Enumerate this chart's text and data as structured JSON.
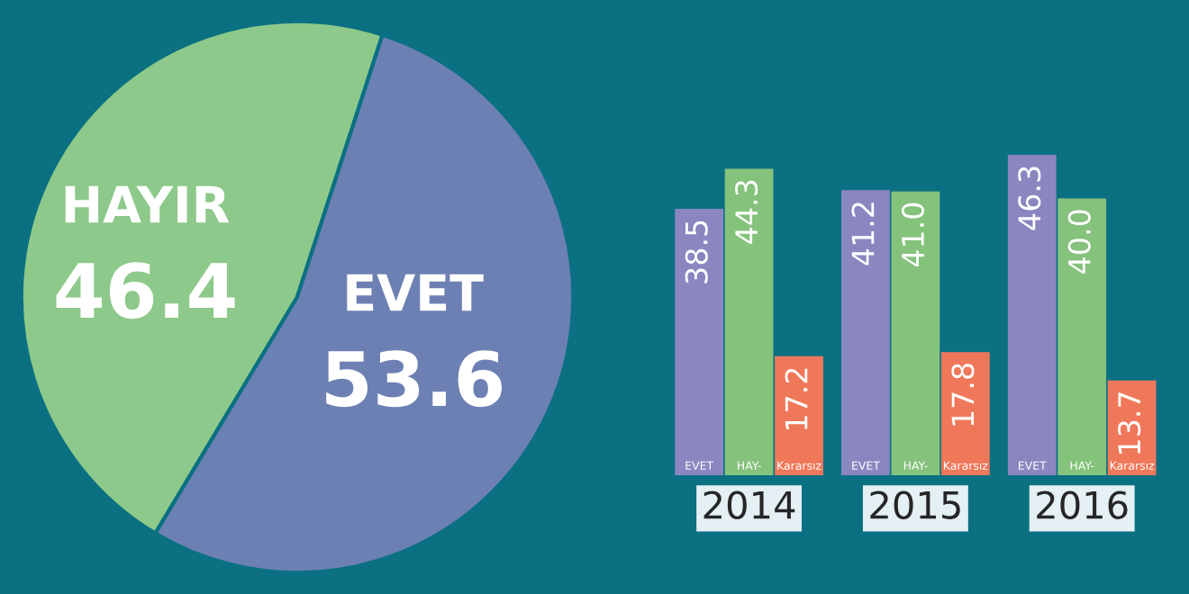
{
  "chart_data": [
    {
      "type": "pie",
      "categories": [
        "HAYIR",
        "EVET"
      ],
      "values": [
        46.4,
        53.6
      ],
      "colors": [
        "#8dc98a",
        "#6d80b3"
      ],
      "data_labels": true
    },
    {
      "type": "bar",
      "categories": [
        "2014",
        "2015",
        "2016"
      ],
      "series": [
        {
          "name": "EVET",
          "color": "#8a86c0",
          "values": [
            38.5,
            41.2,
            46.3
          ],
          "value_labels": [
            "38.5",
            "41.2",
            "46.3"
          ]
        },
        {
          "name": "HAY-",
          "color": "#85c27c",
          "values": [
            44.3,
            41.0,
            40.0
          ],
          "value_labels": [
            "44.3",
            "41.0",
            "40.0"
          ]
        },
        {
          "name": "Kararsız",
          "color": "#f0785a",
          "values": [
            17.2,
            17.8,
            13.7
          ],
          "value_labels": [
            "17.2",
            "17.8",
            "13.7"
          ]
        }
      ]
    }
  ]
}
